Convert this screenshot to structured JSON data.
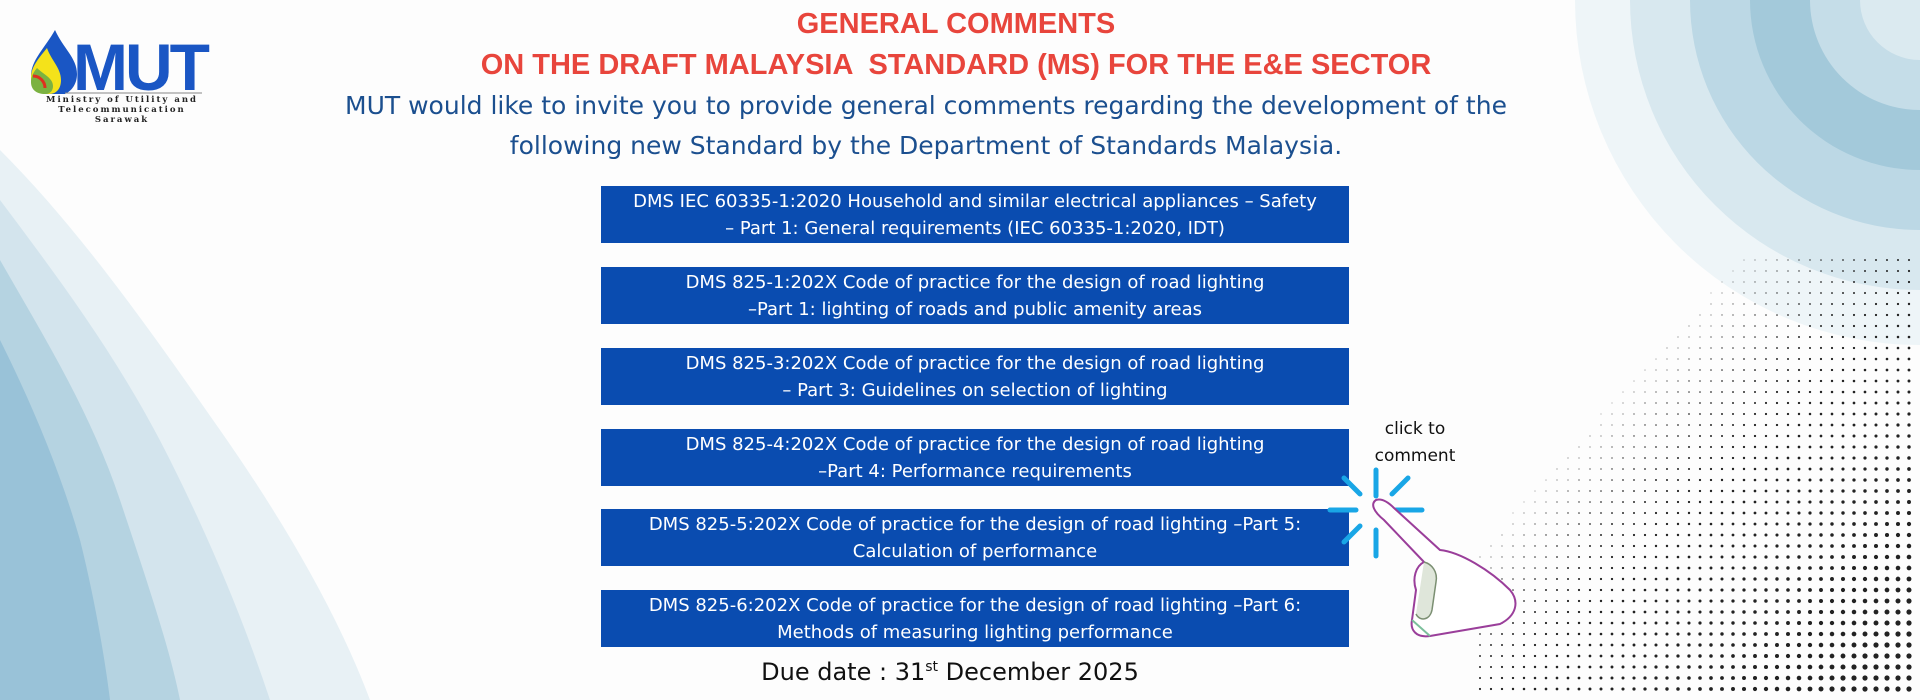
{
  "logo": {
    "text": "MUT",
    "subtitle_lines": [
      "Ministry of Utility and",
      "Telecommunication",
      "Sarawak"
    ]
  },
  "header": {
    "title_line1": "GENERAL COMMENTS",
    "title_line2": "ON THE DRAFT MALAYSIA  STANDARD (MS) FOR THE E&E SECTOR",
    "intro_line1": "MUT would like to invite you to provide general comments regarding the development of the",
    "intro_line2": "following new Standard by the Department of Standards Malaysia."
  },
  "standards": [
    {
      "line1": "DMS IEC 60335-1:2020 Household and similar electrical appliances – Safety",
      "line2": "– Part 1: General requirements (IEC 60335-1:2020, IDT)"
    },
    {
      "line1": "DMS 825-1:202X Code of practice for the design of road lighting",
      "line2": "–Part 1: lighting of roads and public amenity areas"
    },
    {
      "line1": "DMS 825-3:202X Code of practice for the design of road lighting",
      "line2": "– Part 3: Guidelines on selection of lighting"
    },
    {
      "line1": "DMS 825-4:202X Code of practice for the design of road lighting",
      "line2": "–Part 4: Performance requirements"
    },
    {
      "line1": "DMS 825-5:202X Code of practice for the design of road lighting –Part 5:",
      "line2": "Calculation of performance"
    },
    {
      "line1": "DMS 825-6:202X Code of practice for the design of road lighting –Part 6:",
      "line2": "Methods of measuring lighting performance"
    }
  ],
  "due": {
    "prefix": "Due date : 31",
    "suffix": "st",
    "rest": " December 2025"
  },
  "hint": {
    "line1": "click to",
    "line2": "comment",
    "icon": "pointing-hand-icon"
  },
  "colors": {
    "title": "#e8453c",
    "intro": "#1b4f8f",
    "box": "#0a4cb0",
    "accent_wave": "#8fbcd4"
  }
}
